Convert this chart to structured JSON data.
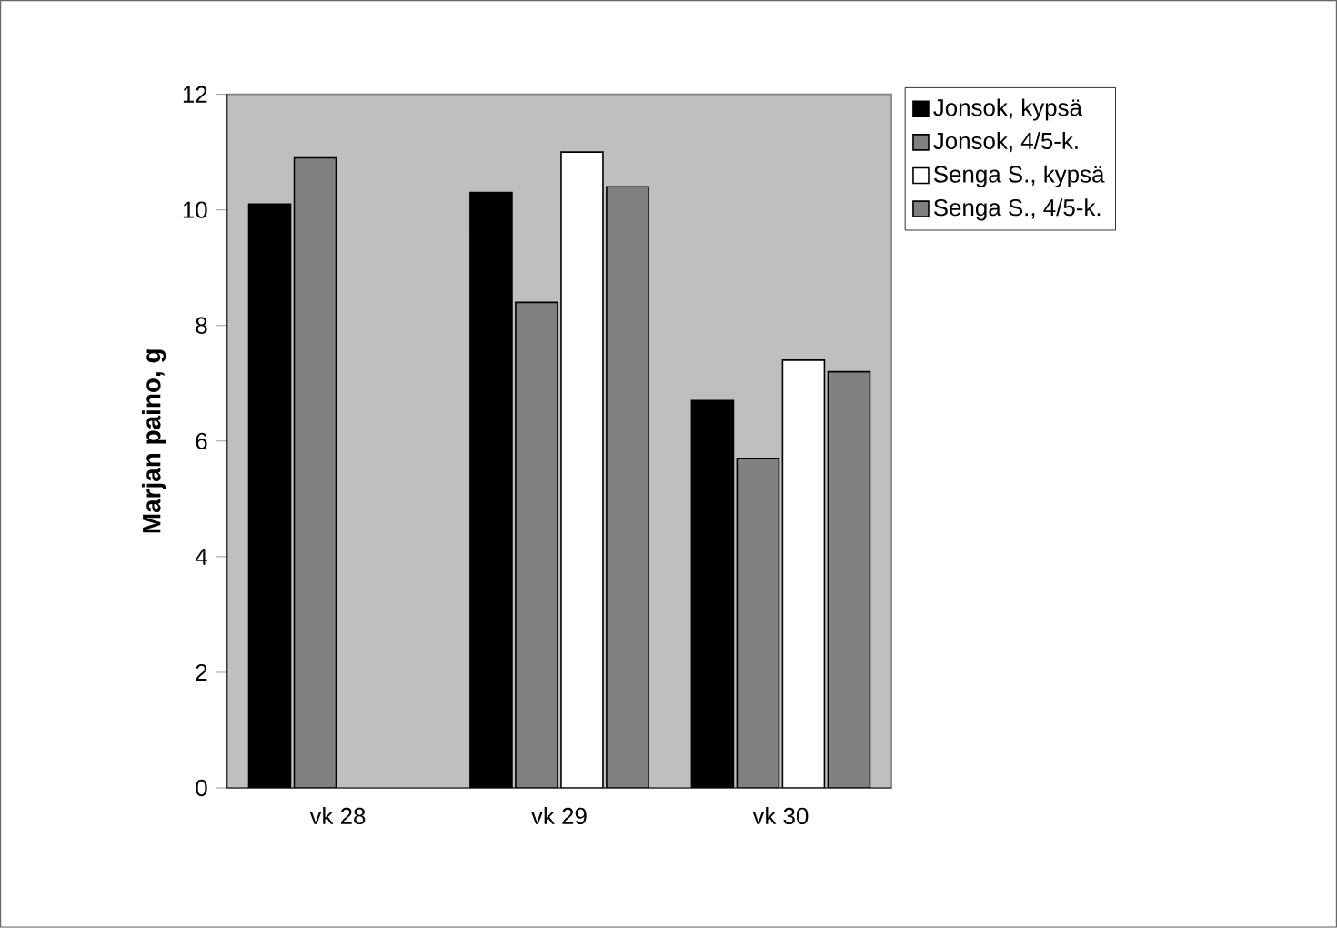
{
  "chart_data": {
    "type": "bar",
    "ylabel": "Marjan paino, g",
    "categories": [
      "vk 28",
      "vk 29",
      "vk 30"
    ],
    "series": [
      {
        "name": "Jonsok, kypsä",
        "color": "#000000",
        "values": [
          10.1,
          10.3,
          6.7
        ]
      },
      {
        "name": "Jonsok, 4/5-k.",
        "color": "#808080",
        "values": [
          10.9,
          8.4,
          5.7
        ]
      },
      {
        "name": "Senga S., kypsä",
        "color": "#ffffff",
        "values": [
          null,
          11.0,
          7.4
        ]
      },
      {
        "name": "Senga S., 4/5-k.",
        "color": "#808080",
        "values": [
          null,
          10.4,
          7.2
        ]
      }
    ],
    "ylim": [
      0,
      12
    ],
    "yticks": [
      0,
      2,
      4,
      6,
      8,
      10,
      12
    ],
    "legend": "right",
    "grid": false
  }
}
